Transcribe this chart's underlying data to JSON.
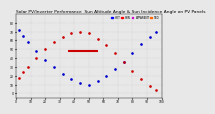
{
  "title": "Solar PV/Inverter Performance  Sun Altitude Angle & Sun Incidence Angle on PV Panels",
  "title_fontsize": 3.2,
  "background_color": "#e8e8e8",
  "plot_bg_color": "#e8e8e8",
  "grid_color": "#bbbbbb",
  "ylim": [
    -5,
    90
  ],
  "xlim": [
    0,
    100
  ],
  "series_blue": {
    "color": "#0000cc",
    "markersize": 1.8,
    "x": [
      2,
      5,
      8,
      14,
      20,
      26,
      32,
      38,
      44,
      50,
      56,
      62,
      68,
      74,
      80,
      86,
      92,
      96
    ],
    "y": [
      72,
      65,
      58,
      48,
      38,
      30,
      22,
      16,
      12,
      10,
      14,
      20,
      28,
      36,
      46,
      56,
      64,
      70
    ]
  },
  "series_red": {
    "color": "#cc0000",
    "markersize": 1.8,
    "x": [
      2,
      5,
      8,
      14,
      20,
      26,
      32,
      38,
      44,
      50,
      56,
      62,
      68,
      74,
      80,
      86,
      92,
      96
    ],
    "y": [
      18,
      24,
      30,
      40,
      50,
      58,
      64,
      68,
      70,
      68,
      62,
      55,
      46,
      36,
      26,
      16,
      8,
      4
    ]
  },
  "hline": {
    "y": 48,
    "x_start": 36,
    "x_end": 56,
    "color": "#cc0000",
    "linewidth": 1.5
  },
  "legend": [
    {
      "label": "HOT",
      "color": "#0000ff"
    },
    {
      "label": "SUN",
      "color": "#ff0000"
    },
    {
      "label": "APPARENT",
      "color": "#cc00cc"
    },
    {
      "label": "TBD",
      "color": "#ff6600"
    }
  ],
  "tick_fontsize": 2.2,
  "yticks": [
    0,
    10,
    20,
    30,
    40,
    50,
    60,
    70,
    80
  ],
  "xticks": [
    0,
    10,
    20,
    30,
    40,
    50,
    60,
    70,
    80,
    90,
    100
  ]
}
